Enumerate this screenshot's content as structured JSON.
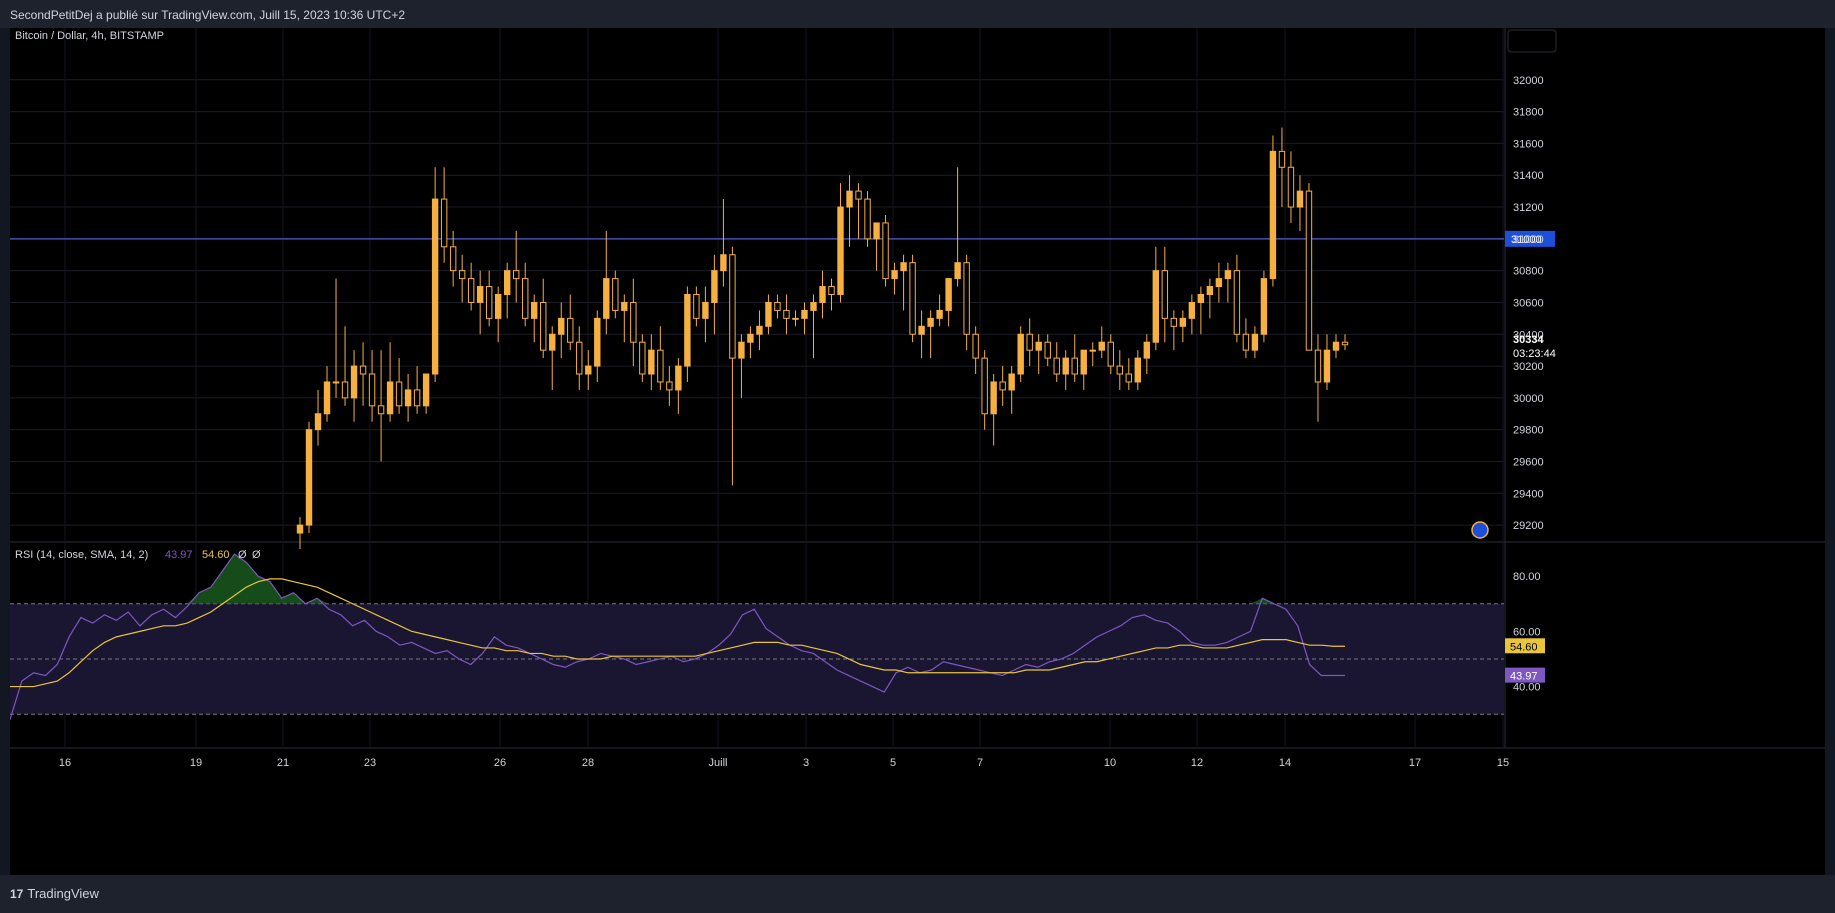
{
  "header": {
    "publisher_text": "SecondPetitDej a publié sur TradingView.com, Juill 15, 2023 10:36 UTC+2"
  },
  "footer": {
    "brand_label": "TradingView"
  },
  "colors": {
    "candle": "#f5b041",
    "level_line": "#3f51b5",
    "rsi_line": "#7e57c2",
    "rsi_ma": "#e9c53c",
    "rsi_fill": "#1b5e20",
    "price_badge_bg": "#1e4fd8"
  },
  "chart_data": [
    {
      "type": "candlestick",
      "title": "Bitcoin / Dollar, 4h, BITSTAMP",
      "x_ticks": [
        "16",
        "19",
        "21",
        "23",
        "26",
        "28",
        "Juill",
        "3",
        "5",
        "7",
        "10",
        "12",
        "14",
        "17",
        "15"
      ],
      "y_ticks": [
        29200,
        29400,
        29600,
        29800,
        30000,
        30200,
        30400,
        30600,
        30800,
        31000,
        31200,
        31400,
        31600,
        31800,
        32000
      ],
      "ylim": [
        29100,
        32200
      ],
      "horizontal_level": {
        "value": 31000,
        "label": "31000"
      },
      "last_price": {
        "value": "30334",
        "countdown": "03:23:44"
      },
      "candles": [
        [
          29150,
          29250,
          29050,
          29200
        ],
        [
          29200,
          29850,
          29150,
          29800
        ],
        [
          29800,
          30050,
          29700,
          29900
        ],
        [
          29900,
          30200,
          29850,
          30100
        ],
        [
          30100,
          30750,
          30000,
          30100
        ],
        [
          30100,
          30450,
          29950,
          30000
        ],
        [
          30000,
          30300,
          29850,
          30200
        ],
        [
          30200,
          30350,
          29950,
          30150
        ],
        [
          30150,
          30300,
          29850,
          29950
        ],
        [
          29950,
          30300,
          29600,
          29900
        ],
        [
          29900,
          30350,
          29850,
          30100
        ],
        [
          30100,
          30250,
          29900,
          29950
        ],
        [
          29950,
          30150,
          29850,
          30050
        ],
        [
          30050,
          30200,
          29900,
          29950
        ],
        [
          29950,
          30150,
          29900,
          30150
        ],
        [
          30150,
          31450,
          30100,
          31250
        ],
        [
          31250,
          31450,
          30850,
          30950
        ],
        [
          30950,
          31050,
          30700,
          30800
        ],
        [
          30800,
          30900,
          30600,
          30750
        ],
        [
          30750,
          30850,
          30550,
          30600
        ],
        [
          30600,
          30800,
          30400,
          30700
        ],
        [
          30700,
          30800,
          30450,
          30500
        ],
        [
          30500,
          30700,
          30350,
          30650
        ],
        [
          30650,
          30850,
          30500,
          30800
        ],
        [
          30800,
          31050,
          30600,
          30750
        ],
        [
          30750,
          30850,
          30450,
          30500
        ],
        [
          30500,
          30650,
          30350,
          30600
        ],
        [
          30600,
          30750,
          30250,
          30300
        ],
        [
          30300,
          30450,
          30050,
          30400
        ],
        [
          30400,
          30600,
          30250,
          30500
        ],
        [
          30500,
          30650,
          30300,
          30350
        ],
        [
          30350,
          30450,
          30050,
          30150
        ],
        [
          30150,
          30300,
          30050,
          30200
        ],
        [
          30200,
          30550,
          30100,
          30500
        ],
        [
          30500,
          31050,
          30400,
          30750
        ],
        [
          30750,
          30800,
          30500,
          30550
        ],
        [
          30550,
          30650,
          30350,
          30600
        ],
        [
          30600,
          30750,
          30200,
          30350
        ],
        [
          30350,
          30400,
          30100,
          30150
        ],
        [
          30150,
          30400,
          30050,
          30300
        ],
        [
          30300,
          30450,
          30050,
          30100
        ],
        [
          30100,
          30200,
          29950,
          30050
        ],
        [
          30050,
          30250,
          29900,
          30200
        ],
        [
          30200,
          30700,
          30100,
          30650
        ],
        [
          30650,
          30700,
          30450,
          30500
        ],
        [
          30500,
          30700,
          30350,
          30600
        ],
        [
          30600,
          30900,
          30400,
          30800
        ],
        [
          30800,
          31250,
          30700,
          30900
        ],
        [
          30900,
          30950,
          29450,
          30250
        ],
        [
          30250,
          30400,
          30000,
          30350
        ],
        [
          30350,
          30450,
          30250,
          30400
        ],
        [
          30400,
          30550,
          30300,
          30450
        ],
        [
          30450,
          30650,
          30400,
          30600
        ],
        [
          30600,
          30650,
          30500,
          30550
        ],
        [
          30550,
          30650,
          30400,
          30500
        ],
        [
          30500,
          30550,
          30450,
          30500
        ],
        [
          30500,
          30600,
          30400,
          30550
        ],
        [
          30550,
          30650,
          30250,
          30600
        ],
        [
          30600,
          30800,
          30500,
          30700
        ],
        [
          30700,
          30750,
          30550,
          30650
        ],
        [
          30650,
          31350,
          30600,
          31200
        ],
        [
          31200,
          31400,
          30950,
          31300
        ],
        [
          31300,
          31350,
          31000,
          31250
        ],
        [
          31250,
          31300,
          30950,
          31000
        ],
        [
          31000,
          31100,
          30800,
          31100
        ],
        [
          31100,
          31150,
          30700,
          30750
        ],
        [
          30750,
          30850,
          30650,
          30800
        ],
        [
          30800,
          30900,
          30550,
          30850
        ],
        [
          30850,
          30900,
          30350,
          30400
        ],
        [
          30400,
          30550,
          30250,
          30450
        ],
        [
          30450,
          30550,
          30250,
          30500
        ],
        [
          30500,
          30650,
          30450,
          30550
        ],
        [
          30550,
          30750,
          30450,
          30750
        ],
        [
          30750,
          31450,
          30700,
          30850
        ],
        [
          30850,
          30900,
          30300,
          30400
        ],
        [
          30400,
          30450,
          30150,
          30250
        ],
        [
          30250,
          30300,
          29800,
          29900
        ],
        [
          29900,
          30150,
          29700,
          30100
        ],
        [
          30100,
          30200,
          29950,
          30050
        ],
        [
          30050,
          30200,
          29900,
          30150
        ],
        [
          30150,
          30450,
          30100,
          30400
        ],
        [
          30400,
          30500,
          30200,
          30300
        ],
        [
          30300,
          30400,
          30150,
          30350
        ],
        [
          30350,
          30400,
          30200,
          30250
        ],
        [
          30250,
          30350,
          30100,
          30150
        ],
        [
          30150,
          30300,
          30050,
          30250
        ],
        [
          30250,
          30400,
          30100,
          30150
        ],
        [
          30150,
          30300,
          30050,
          30300
        ],
        [
          30300,
          30350,
          30200,
          30300
        ],
        [
          30300,
          30450,
          30250,
          30350
        ],
        [
          30350,
          30400,
          30150,
          30200
        ],
        [
          30200,
          30300,
          30050,
          30150
        ],
        [
          30150,
          30250,
          30050,
          30100
        ],
        [
          30100,
          30300,
          30050,
          30250
        ],
        [
          30250,
          30400,
          30150,
          30350
        ],
        [
          30350,
          30950,
          30300,
          30800
        ],
        [
          30800,
          30950,
          30350,
          30500
        ],
        [
          30500,
          30550,
          30300,
          30450
        ],
        [
          30450,
          30550,
          30350,
          30500
        ],
        [
          30500,
          30650,
          30400,
          30600
        ],
        [
          30600,
          30700,
          30400,
          30650
        ],
        [
          30650,
          30750,
          30500,
          30700
        ],
        [
          30700,
          30850,
          30600,
          30750
        ],
        [
          30750,
          30850,
          30600,
          30800
        ],
        [
          30800,
          30900,
          30350,
          30400
        ],
        [
          30400,
          30500,
          30250,
          30300
        ],
        [
          30300,
          30450,
          30250,
          30400
        ],
        [
          30400,
          30800,
          30350,
          30750
        ],
        [
          30750,
          31650,
          30700,
          31550
        ],
        [
          31550,
          31700,
          31200,
          31450
        ],
        [
          31450,
          31550,
          31100,
          31200
        ],
        [
          31200,
          31400,
          31050,
          31300
        ],
        [
          31300,
          31350,
          30300,
          30300
        ],
        [
          30300,
          30400,
          29850,
          30100
        ],
        [
          30100,
          30400,
          30050,
          30300
        ],
        [
          30300,
          30400,
          30250,
          30350
        ],
        [
          30350,
          30400,
          30300,
          30334
        ]
      ]
    },
    {
      "type": "line",
      "title": "RSI (14, close, SMA, 14, 2)",
      "rsi_value_label": "43.97",
      "ma_value_label": "54.60",
      "extra_labels": [
        "Ø",
        "Ø"
      ],
      "y_ticks": [
        40,
        60,
        80
      ],
      "y_tick_labels": [
        "40.00",
        "60.00",
        "80.00"
      ],
      "ylim": [
        25,
        92
      ],
      "bands": {
        "upper": 70,
        "middle": 50,
        "lower": 30
      },
      "series": [
        {
          "key": "rsi",
          "values": [
            28,
            42,
            45,
            44,
            48,
            58,
            65,
            63,
            66,
            64,
            67,
            62,
            66,
            68,
            65,
            69,
            74,
            76,
            82,
            88,
            85,
            80,
            78,
            72,
            74,
            70,
            72,
            68,
            66,
            62,
            64,
            60,
            58,
            55,
            56,
            54,
            52,
            53,
            50,
            48,
            52,
            58,
            55,
            54,
            52,
            50,
            48,
            47,
            49,
            50,
            52,
            51,
            50,
            48,
            49,
            50,
            51,
            49,
            50,
            52,
            55,
            59,
            66,
            68,
            61,
            58,
            55,
            53,
            52,
            49,
            46,
            44,
            42,
            40,
            38,
            45,
            47,
            45,
            46,
            49,
            48,
            47,
            46,
            45,
            44,
            46,
            48,
            47,
            49,
            50,
            52,
            55,
            58,
            60,
            62,
            65,
            66,
            64,
            63,
            60,
            56,
            55,
            55,
            56,
            58,
            60,
            72,
            70,
            68,
            62,
            48,
            44,
            44,
            44
          ]
        },
        {
          "key": "rsi_ma",
          "values": [
            40,
            40,
            40,
            41,
            42,
            45,
            49,
            53,
            56,
            58,
            59,
            60,
            61,
            62,
            62,
            63,
            65,
            67,
            70,
            73,
            76,
            78,
            79,
            79,
            78,
            77,
            76,
            74,
            72,
            70,
            68,
            66,
            64,
            62,
            60,
            59,
            58,
            57,
            56,
            55,
            54,
            54,
            53,
            53,
            52,
            52,
            51,
            51,
            50,
            50,
            50,
            51,
            51,
            51,
            51,
            51,
            51,
            51,
            51,
            52,
            53,
            54,
            55,
            56,
            56,
            56,
            55,
            55,
            54,
            53,
            52,
            50,
            48,
            47,
            46,
            46,
            45,
            45,
            45,
            45,
            45,
            45,
            45,
            45,
            45,
            45,
            46,
            46,
            46,
            47,
            48,
            49,
            49,
            50,
            51,
            52,
            53,
            54,
            54,
            55,
            55,
            54,
            54,
            54,
            55,
            56,
            57,
            57,
            57,
            56,
            55,
            55,
            54.6,
            54.6
          ]
        }
      ]
    }
  ]
}
